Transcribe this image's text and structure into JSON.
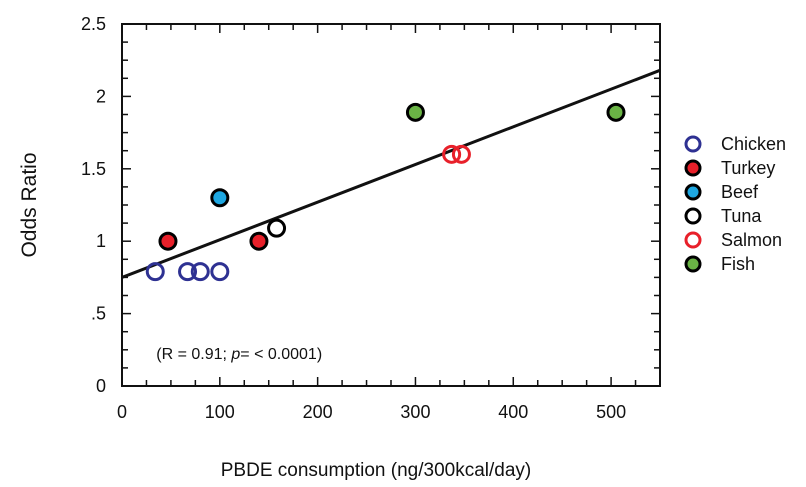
{
  "chart_data": {
    "type": "scatter",
    "xlabel": "PBDE consumption (ng/300kcal/day)",
    "ylabel": "Odds Ratio",
    "xlim": [
      0,
      550
    ],
    "ylim": [
      0,
      2.5
    ],
    "x_ticks": [
      {
        "v": 0,
        "label": "0"
      },
      {
        "v": 100,
        "label": "100"
      },
      {
        "v": 200,
        "label": "200"
      },
      {
        "v": 300,
        "label": "300"
      },
      {
        "v": 400,
        "label": "400"
      },
      {
        "v": 500,
        "label": "500"
      }
    ],
    "y_ticks": [
      {
        "v": 0,
        "label": "0"
      },
      {
        "v": 0.5,
        "label": ".5"
      },
      {
        "v": 1,
        "label": "1"
      },
      {
        "v": 1.5,
        "label": "1.5"
      },
      {
        "v": 2,
        "label": "2"
      },
      {
        "v": 2.5,
        "label": "2.5"
      }
    ],
    "series": [
      {
        "name": "Chicken",
        "stroke": "#2e3192",
        "fill": "none",
        "points": [
          [
            34,
            0.79
          ],
          [
            67,
            0.79
          ],
          [
            80,
            0.79
          ],
          [
            100,
            0.79
          ]
        ]
      },
      {
        "name": "Turkey",
        "stroke": "#000000",
        "fill": "#e8202a",
        "points": [
          [
            47,
            1.0
          ],
          [
            140,
            1.0
          ]
        ]
      },
      {
        "name": "Beef",
        "stroke": "#000000",
        "fill": "#1ea7e1",
        "points": [
          [
            100,
            1.3
          ]
        ]
      },
      {
        "name": "Tuna",
        "stroke": "#000000",
        "fill": "none",
        "points": [
          [
            158,
            1.09
          ]
        ]
      },
      {
        "name": "Salmon",
        "stroke": "#e8202a",
        "fill": "none",
        "points": [
          [
            337,
            1.6
          ],
          [
            347,
            1.6
          ]
        ]
      },
      {
        "name": "Fish",
        "stroke": "#000000",
        "fill": "#6ab445",
        "points": [
          [
            300,
            1.89
          ],
          [
            505,
            1.89
          ]
        ]
      }
    ],
    "regression_line": {
      "x": [
        0,
        550
      ],
      "y": [
        0.75,
        2.18
      ]
    },
    "annotation": {
      "prefix": "(R = 0.91;  ",
      "p": "p",
      "suffix": "= < 0.0001)",
      "x": 35,
      "y": 0.22
    },
    "legend_position": "right",
    "grid": false
  }
}
